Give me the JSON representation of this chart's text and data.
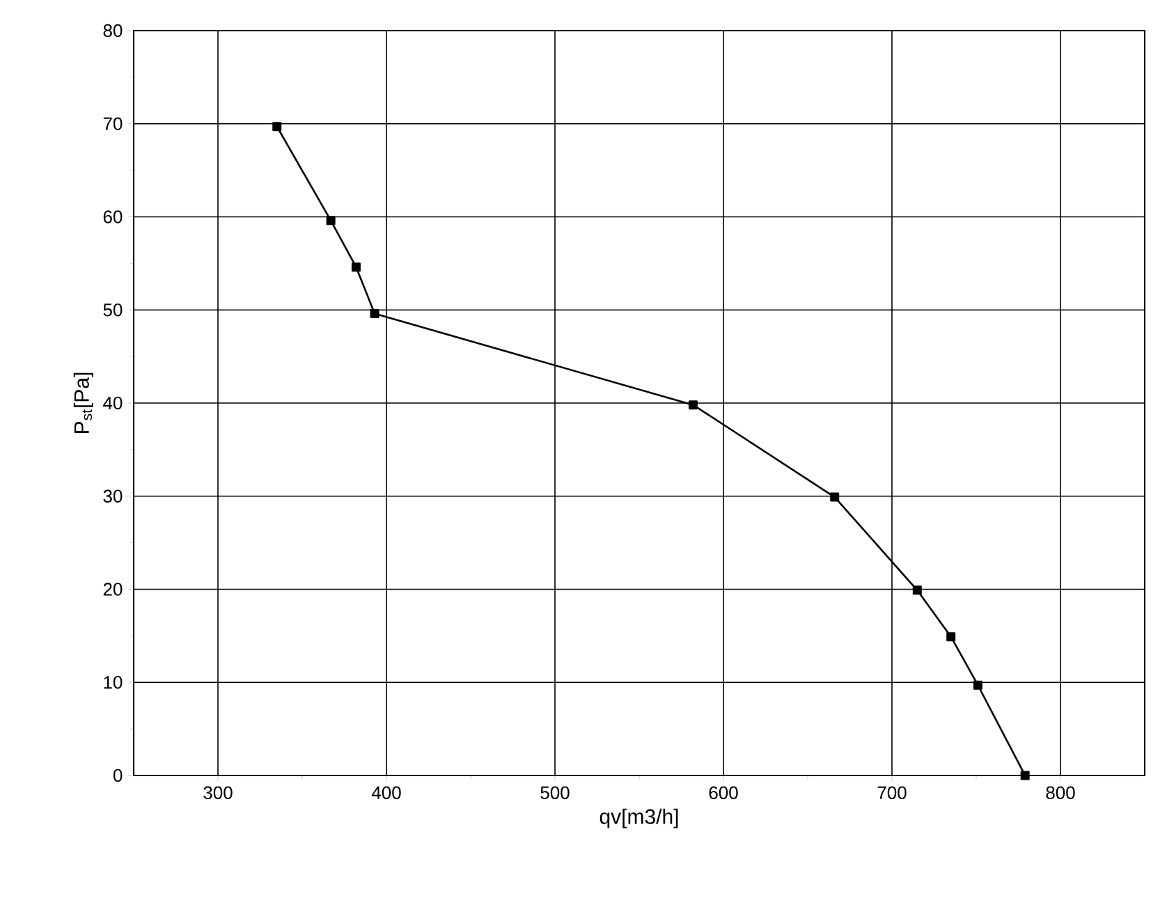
{
  "chart_data": {
    "type": "line",
    "xlabel": "qv[m3/h]",
    "ylabel": "P$_{st}$[Pa]",
    "xlim": [
      250,
      850
    ],
    "xticks": [
      300,
      400,
      500,
      600,
      700,
      800
    ],
    "ylim": [
      0,
      80
    ],
    "yticks": [
      0,
      10,
      20,
      30,
      40,
      50,
      60,
      70,
      80
    ],
    "grid": true,
    "marker": "square",
    "line_style": "solid",
    "series": [
      {
        "color": "#000000",
        "x": [
          335,
          367,
          382,
          393,
          582,
          666,
          715,
          735,
          751,
          779
        ],
        "values": [
          69.7,
          59.6,
          54.6,
          49.6,
          39.8,
          29.9,
          19.9,
          14.9,
          9.7,
          0
        ]
      }
    ]
  }
}
